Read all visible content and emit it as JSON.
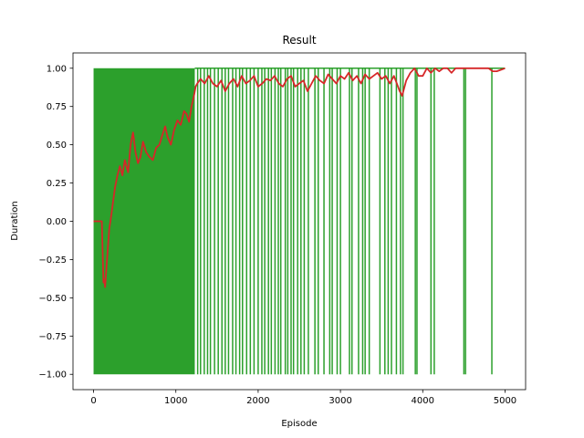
{
  "chart_data": {
    "type": "line",
    "title": "Result",
    "xlabel": "Episode",
    "ylabel": "Duration",
    "xlim": [
      -250,
      5250
    ],
    "ylim": [
      -1.1,
      1.1
    ],
    "x_ticks": [
      0,
      1000,
      2000,
      3000,
      4000,
      5000
    ],
    "x_tick_labels": [
      "0",
      "1000",
      "2000",
      "3000",
      "4000",
      "5000"
    ],
    "y_ticks": [
      -1.0,
      -0.75,
      -0.5,
      -0.25,
      0.0,
      0.25,
      0.5,
      0.75,
      1.0
    ],
    "y_tick_labels": [
      "−1.00",
      "−0.75",
      "−0.50",
      "−0.25",
      "0.00",
      "0.25",
      "0.50",
      "0.75",
      "1.00"
    ],
    "grid": false,
    "legend": "none",
    "series": [
      {
        "role": "per-episode result",
        "color": "#2ca02c",
        "dense_region": {
          "x": [
            0,
            1230
          ],
          "low": -1.0,
          "high": 1.0
        },
        "drops_to_minus_one_at": [
          1265,
          1300,
          1345,
          1385,
          1420,
          1470,
          1515,
          1560,
          1600,
          1640,
          1690,
          1730,
          1775,
          1810,
          1860,
          1905,
          1950,
          2000,
          2045,
          2080,
          2125,
          2160,
          2205,
          2245,
          2275,
          2330,
          2360,
          2400,
          2430,
          2480,
          2520,
          2560,
          2610,
          2690,
          2730,
          2800,
          2870,
          2900,
          2960,
          3000,
          3110,
          3140,
          3220,
          3270,
          3300,
          3350,
          3480,
          3540,
          3580,
          3620,
          3680,
          3730,
          3760,
          3910,
          3930,
          4100,
          4140,
          4500,
          4520,
          4840
        ],
        "otherwise": 1.0
      },
      {
        "role": "moving average",
        "color": "#d62728",
        "x": [
          0,
          30,
          60,
          90,
          100,
          110,
          120,
          130,
          140,
          150,
          170,
          190,
          210,
          230,
          260,
          290,
          320,
          350,
          380,
          420,
          450,
          480,
          510,
          540,
          570,
          600,
          640,
          680,
          720,
          760,
          800,
          840,
          870,
          900,
          940,
          980,
          1020,
          1060,
          1100,
          1130,
          1160,
          1190,
          1220,
          1240,
          1260,
          1300,
          1350,
          1400,
          1450,
          1500,
          1550,
          1600,
          1650,
          1700,
          1750,
          1800,
          1850,
          1900,
          1950,
          2000,
          2050,
          2100,
          2150,
          2200,
          2250,
          2300,
          2350,
          2400,
          2450,
          2500,
          2550,
          2600,
          2650,
          2700,
          2750,
          2800,
          2850,
          2900,
          2950,
          3000,
          3050,
          3100,
          3150,
          3200,
          3250,
          3300,
          3350,
          3400,
          3450,
          3500,
          3550,
          3600,
          3650,
          3700,
          3720,
          3750,
          3780,
          3800,
          3850,
          3900,
          3950,
          4000,
          4050,
          4100,
          4150,
          4200,
          4250,
          4300,
          4350,
          4400,
          4450,
          4500,
          4550,
          4600,
          4650,
          4700,
          4750,
          4800,
          4850,
          4900,
          4950,
          5000
        ],
        "y": [
          0.0,
          0.0,
          0.0,
          0.0,
          0.0,
          -0.2,
          -0.4,
          -0.38,
          -0.43,
          -0.35,
          -0.2,
          -0.05,
          0.02,
          0.1,
          0.22,
          0.3,
          0.36,
          0.3,
          0.4,
          0.32,
          0.5,
          0.58,
          0.45,
          0.38,
          0.42,
          0.52,
          0.45,
          0.42,
          0.4,
          0.48,
          0.5,
          0.57,
          0.62,
          0.55,
          0.5,
          0.6,
          0.66,
          0.63,
          0.72,
          0.7,
          0.65,
          0.75,
          0.82,
          0.88,
          0.9,
          0.93,
          0.9,
          0.95,
          0.9,
          0.88,
          0.92,
          0.85,
          0.9,
          0.93,
          0.88,
          0.95,
          0.9,
          0.92,
          0.95,
          0.88,
          0.9,
          0.93,
          0.92,
          0.95,
          0.9,
          0.88,
          0.93,
          0.95,
          0.88,
          0.9,
          0.92,
          0.85,
          0.9,
          0.95,
          0.92,
          0.9,
          0.96,
          0.93,
          0.9,
          0.95,
          0.93,
          0.97,
          0.92,
          0.95,
          0.9,
          0.96,
          0.93,
          0.95,
          0.97,
          0.93,
          0.95,
          0.9,
          0.95,
          0.88,
          0.85,
          0.82,
          0.88,
          0.92,
          0.97,
          1.0,
          0.95,
          0.95,
          1.0,
          0.97,
          1.0,
          0.98,
          1.0,
          1.0,
          0.97,
          1.0,
          1.0,
          1.0,
          1.0,
          1.0,
          1.0,
          1.0,
          1.0,
          1.0,
          0.98,
          0.98,
          0.99,
          1.0
        ]
      }
    ]
  }
}
